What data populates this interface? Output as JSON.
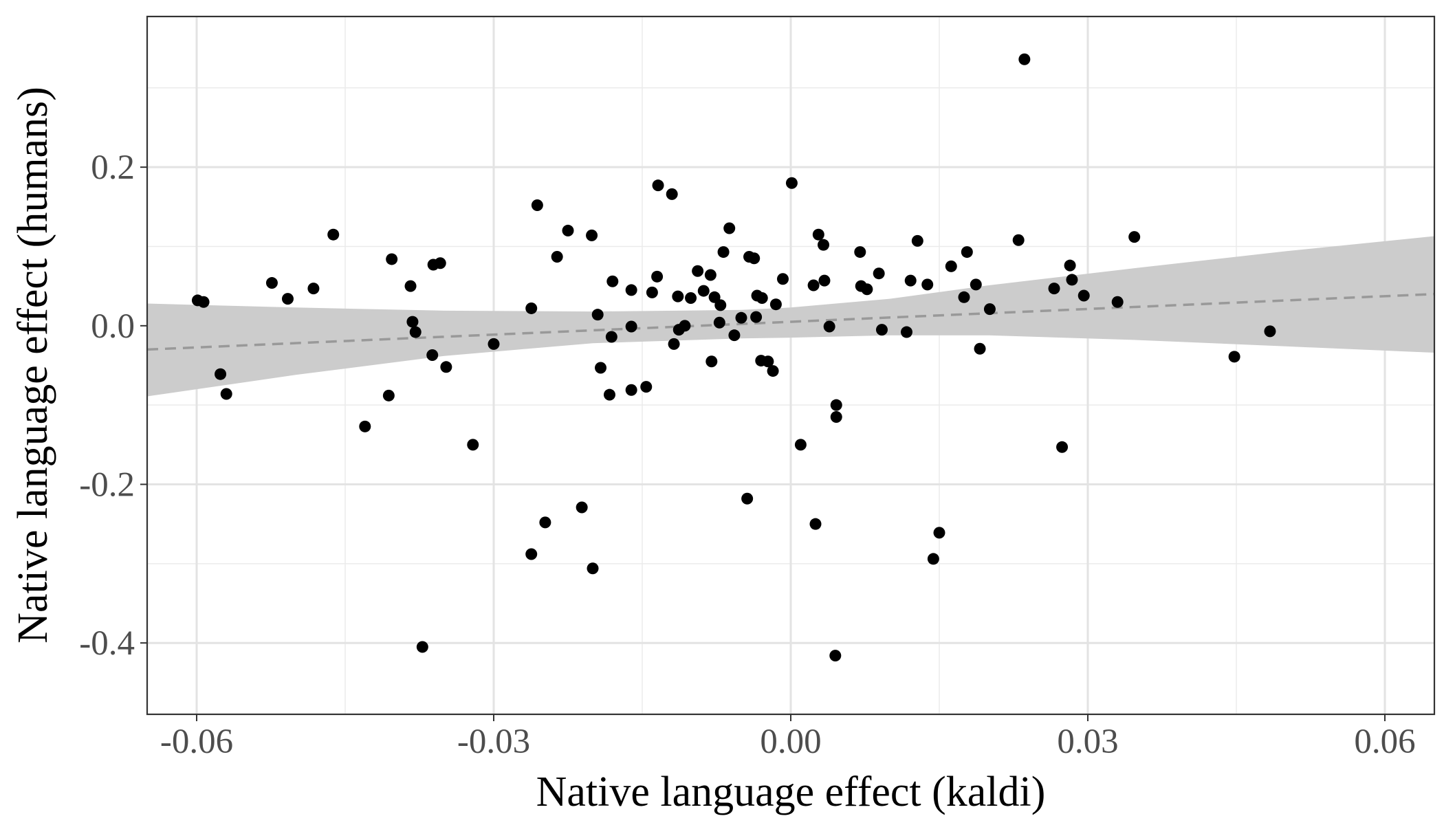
{
  "chart_data": {
    "type": "scatter",
    "title": "",
    "xlabel": "Native language effect (kaldi)",
    "ylabel": "Native language effect (humans)",
    "xlim": [
      -0.065,
      0.065
    ],
    "ylim": [
      -0.49,
      0.39
    ],
    "x_ticks": [
      -0.06,
      -0.03,
      0.0,
      0.03,
      0.06
    ],
    "x_tick_labels": [
      "-0.06",
      "-0.03",
      "0.00",
      "0.03",
      "0.06"
    ],
    "y_ticks": [
      -0.4,
      -0.2,
      0.0,
      0.2
    ],
    "y_tick_labels": [
      "-0.4",
      "-0.2",
      "0.0",
      "0.2"
    ],
    "x_minor": [
      -0.045,
      -0.015,
      0.015,
      0.045
    ],
    "y_minor": [
      -0.3,
      -0.1,
      0.1,
      0.3
    ],
    "grid": true,
    "legend": "none",
    "point_color": "#000000",
    "fit_line": {
      "style": "dashed",
      "color": "#999999",
      "x": [
        -0.065,
        0.065
      ],
      "y": [
        -0.03,
        0.04
      ]
    },
    "confidence_band": {
      "color": "#cccccc",
      "x": [
        -0.065,
        -0.05,
        -0.035,
        -0.02,
        -0.005,
        0.0,
        0.01,
        0.02,
        0.035,
        0.05,
        0.065
      ],
      "lower": [
        -0.089,
        -0.062,
        -0.038,
        -0.022,
        -0.016,
        -0.015,
        -0.012,
        -0.012,
        -0.018,
        -0.026,
        -0.034
      ],
      "upper": [
        0.028,
        0.023,
        0.019,
        0.018,
        0.02,
        0.023,
        0.034,
        0.051,
        0.073,
        0.094,
        0.113
      ]
    },
    "points": [
      {
        "x": -0.0599,
        "y": 0.032
      },
      {
        "x": -0.0593,
        "y": 0.03
      },
      {
        "x": -0.0576,
        "y": -0.061
      },
      {
        "x": -0.057,
        "y": -0.086
      },
      {
        "x": -0.0524,
        "y": 0.054
      },
      {
        "x": -0.0508,
        "y": 0.034
      },
      {
        "x": -0.0482,
        "y": 0.047
      },
      {
        "x": -0.0462,
        "y": 0.115
      },
      {
        "x": -0.043,
        "y": -0.127
      },
      {
        "x": -0.0406,
        "y": -0.088
      },
      {
        "x": -0.0403,
        "y": 0.084
      },
      {
        "x": -0.0384,
        "y": 0.05
      },
      {
        "x": -0.0382,
        "y": 0.005
      },
      {
        "x": -0.0379,
        "y": -0.008
      },
      {
        "x": -0.0372,
        "y": -0.405
      },
      {
        "x": -0.0362,
        "y": -0.037
      },
      {
        "x": -0.0361,
        "y": 0.077
      },
      {
        "x": -0.0354,
        "y": 0.079
      },
      {
        "x": -0.0348,
        "y": -0.052
      },
      {
        "x": -0.0321,
        "y": -0.15
      },
      {
        "x": -0.03,
        "y": -0.023
      },
      {
        "x": -0.0262,
        "y": -0.288
      },
      {
        "x": -0.0262,
        "y": 0.022
      },
      {
        "x": -0.0256,
        "y": 0.152
      },
      {
        "x": -0.0248,
        "y": -0.248
      },
      {
        "x": -0.0236,
        "y": 0.087
      },
      {
        "x": -0.0225,
        "y": 0.12
      },
      {
        "x": -0.0211,
        "y": -0.229
      },
      {
        "x": -0.0201,
        "y": 0.114
      },
      {
        "x": -0.02,
        "y": -0.306
      },
      {
        "x": -0.0195,
        "y": 0.014
      },
      {
        "x": -0.0192,
        "y": -0.053
      },
      {
        "x": -0.0183,
        "y": -0.087
      },
      {
        "x": -0.0181,
        "y": -0.014
      },
      {
        "x": -0.018,
        "y": 0.056
      },
      {
        "x": -0.0161,
        "y": 0.045
      },
      {
        "x": -0.0161,
        "y": -0.081
      },
      {
        "x": -0.0161,
        "y": -0.001
      },
      {
        "x": -0.0146,
        "y": -0.077
      },
      {
        "x": -0.014,
        "y": 0.042
      },
      {
        "x": -0.0135,
        "y": 0.062
      },
      {
        "x": -0.0134,
        "y": 0.177
      },
      {
        "x": -0.012,
        "y": 0.166
      },
      {
        "x": -0.0118,
        "y": -0.023
      },
      {
        "x": -0.0114,
        "y": 0.037
      },
      {
        "x": -0.0113,
        "y": -0.005
      },
      {
        "x": -0.0107,
        "y": 0.0
      },
      {
        "x": -0.0101,
        "y": 0.035
      },
      {
        "x": -0.0094,
        "y": 0.069
      },
      {
        "x": -0.0088,
        "y": 0.044
      },
      {
        "x": -0.0081,
        "y": 0.064
      },
      {
        "x": -0.008,
        "y": -0.045
      },
      {
        "x": -0.0077,
        "y": 0.036
      },
      {
        "x": -0.0072,
        "y": 0.004
      },
      {
        "x": -0.0071,
        "y": 0.026
      },
      {
        "x": -0.0068,
        "y": 0.093
      },
      {
        "x": -0.0062,
        "y": 0.123
      },
      {
        "x": -0.0057,
        "y": -0.012
      },
      {
        "x": -0.005,
        "y": 0.01
      },
      {
        "x": -0.0044,
        "y": -0.218
      },
      {
        "x": -0.0042,
        "y": 0.087
      },
      {
        "x": -0.0037,
        "y": 0.085
      },
      {
        "x": -0.0035,
        "y": 0.011
      },
      {
        "x": -0.0034,
        "y": 0.038
      },
      {
        "x": -0.003,
        "y": -0.044
      },
      {
        "x": -0.0029,
        "y": 0.035
      },
      {
        "x": -0.0023,
        "y": -0.045
      },
      {
        "x": -0.0018,
        "y": -0.057
      },
      {
        "x": -0.0015,
        "y": 0.027
      },
      {
        "x": -0.0008,
        "y": 0.059
      },
      {
        "x": 0.0001,
        "y": 0.18
      },
      {
        "x": 0.001,
        "y": -0.15
      },
      {
        "x": 0.0023,
        "y": 0.051
      },
      {
        "x": 0.0025,
        "y": -0.25
      },
      {
        "x": 0.0028,
        "y": 0.115
      },
      {
        "x": 0.0033,
        "y": 0.102
      },
      {
        "x": 0.0034,
        "y": 0.057
      },
      {
        "x": 0.0039,
        "y": -0.001
      },
      {
        "x": 0.0045,
        "y": -0.416
      },
      {
        "x": 0.0046,
        "y": -0.1
      },
      {
        "x": 0.0046,
        "y": -0.115
      },
      {
        "x": 0.007,
        "y": 0.093
      },
      {
        "x": 0.0071,
        "y": 0.05
      },
      {
        "x": 0.0077,
        "y": 0.046
      },
      {
        "x": 0.0089,
        "y": 0.066
      },
      {
        "x": 0.0092,
        "y": -0.005
      },
      {
        "x": 0.0117,
        "y": -0.008
      },
      {
        "x": 0.0121,
        "y": 0.057
      },
      {
        "x": 0.0128,
        "y": 0.107
      },
      {
        "x": 0.0138,
        "y": 0.052
      },
      {
        "x": 0.0144,
        "y": -0.294
      },
      {
        "x": 0.015,
        "y": -0.261
      },
      {
        "x": 0.0162,
        "y": 0.075
      },
      {
        "x": 0.0175,
        "y": 0.036
      },
      {
        "x": 0.0178,
        "y": 0.093
      },
      {
        "x": 0.0187,
        "y": 0.052
      },
      {
        "x": 0.0191,
        "y": -0.029
      },
      {
        "x": 0.0201,
        "y": 0.021
      },
      {
        "x": 0.023,
        "y": 0.108
      },
      {
        "x": 0.0236,
        "y": 0.336
      },
      {
        "x": 0.0266,
        "y": 0.047
      },
      {
        "x": 0.0274,
        "y": -0.153
      },
      {
        "x": 0.0282,
        "y": 0.076
      },
      {
        "x": 0.0284,
        "y": 0.058
      },
      {
        "x": 0.0296,
        "y": 0.038
      },
      {
        "x": 0.033,
        "y": 0.03
      },
      {
        "x": 0.0347,
        "y": 0.112
      },
      {
        "x": 0.0448,
        "y": -0.039
      },
      {
        "x": 0.0484,
        "y": -0.007
      }
    ]
  }
}
